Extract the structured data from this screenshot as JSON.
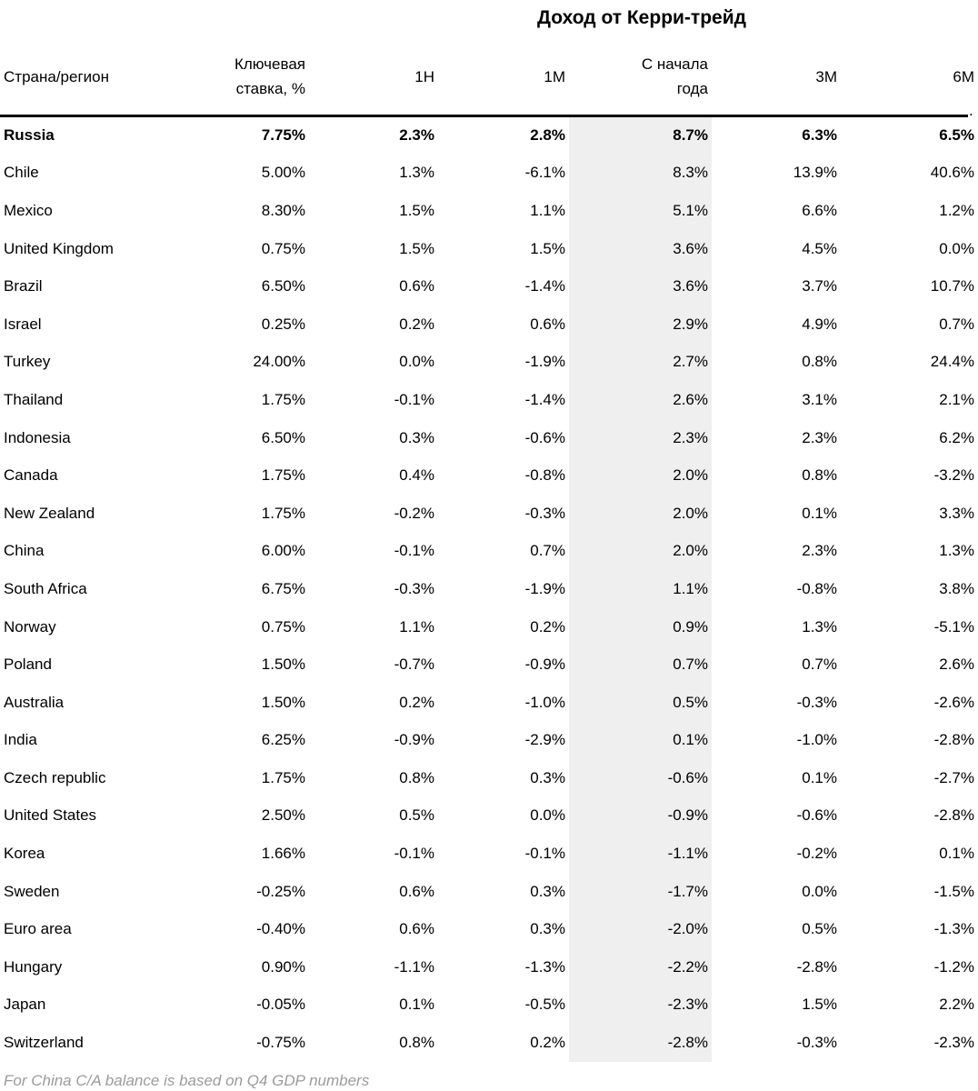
{
  "chart_data": {
    "type": "table",
    "title": "Доход от Керри-трейд",
    "columns": [
      "Страна/регион",
      "Ключевая ставка, %",
      "1Н",
      "1М",
      "С начала года",
      "3М",
      "6М"
    ],
    "highlighted_column": "С начала года",
    "bold_row_index": 0,
    "rows": [
      [
        "Russia",
        "7.75%",
        "2.3%",
        "2.8%",
        "8.7%",
        "6.3%",
        "6.5%"
      ],
      [
        "Chile",
        "5.00%",
        "1.3%",
        "-6.1%",
        "8.3%",
        "13.9%",
        "40.6%"
      ],
      [
        "Mexico",
        "8.30%",
        "1.5%",
        "1.1%",
        "5.1%",
        "6.6%",
        "1.2%"
      ],
      [
        "United Kingdom",
        "0.75%",
        "1.5%",
        "1.5%",
        "3.6%",
        "4.5%",
        "0.0%"
      ],
      [
        "Brazil",
        "6.50%",
        "0.6%",
        "-1.4%",
        "3.6%",
        "3.7%",
        "10.7%"
      ],
      [
        "Israel",
        "0.25%",
        "0.2%",
        "0.6%",
        "2.9%",
        "4.9%",
        "0.7%"
      ],
      [
        "Turkey",
        "24.00%",
        "0.0%",
        "-1.9%",
        "2.7%",
        "0.8%",
        "24.4%"
      ],
      [
        "Thailand",
        "1.75%",
        "-0.1%",
        "-1.4%",
        "2.6%",
        "3.1%",
        "2.1%"
      ],
      [
        "Indonesia",
        "6.50%",
        "0.3%",
        "-0.6%",
        "2.3%",
        "2.3%",
        "6.2%"
      ],
      [
        "Canada",
        "1.75%",
        "0.4%",
        "-0.8%",
        "2.0%",
        "0.8%",
        "-3.2%"
      ],
      [
        "New Zealand",
        "1.75%",
        "-0.2%",
        "-0.3%",
        "2.0%",
        "0.1%",
        "3.3%"
      ],
      [
        "China",
        "6.00%",
        "-0.1%",
        "0.7%",
        "2.0%",
        "2.3%",
        "1.3%"
      ],
      [
        "South Africa",
        "6.75%",
        "-0.3%",
        "-1.9%",
        "1.1%",
        "-0.8%",
        "3.8%"
      ],
      [
        "Norway",
        "0.75%",
        "1.1%",
        "0.2%",
        "0.9%",
        "1.3%",
        "-5.1%"
      ],
      [
        "Poland",
        "1.50%",
        "-0.7%",
        "-0.9%",
        "0.7%",
        "0.7%",
        "2.6%"
      ],
      [
        "Australia",
        "1.50%",
        "0.2%",
        "-1.0%",
        "0.5%",
        "-0.3%",
        "-2.6%"
      ],
      [
        "India",
        "6.25%",
        "-0.9%",
        "-2.9%",
        "0.1%",
        "-1.0%",
        "-2.8%"
      ],
      [
        "Czech republic",
        "1.75%",
        "0.8%",
        "0.3%",
        "-0.6%",
        "0.1%",
        "-2.7%"
      ],
      [
        "United States",
        "2.50%",
        "0.5%",
        "0.0%",
        "-0.9%",
        "-0.6%",
        "-2.8%"
      ],
      [
        "Korea",
        "1.66%",
        "-0.1%",
        "-0.1%",
        "-1.1%",
        "-0.2%",
        "0.1%"
      ],
      [
        "Sweden",
        "-0.25%",
        "0.6%",
        "0.3%",
        "-1.7%",
        "0.0%",
        "-1.5%"
      ],
      [
        "Euro area",
        "-0.40%",
        "0.6%",
        "0.3%",
        "-2.0%",
        "0.5%",
        "-1.3%"
      ],
      [
        "Hungary",
        "0.90%",
        "-1.1%",
        "-1.3%",
        "-2.2%",
        "-2.8%",
        "-1.2%"
      ],
      [
        "Japan",
        "-0.05%",
        "0.1%",
        "-0.5%",
        "-2.3%",
        "1.5%",
        "2.2%"
      ],
      [
        "Switzerland",
        "-0.75%",
        "0.8%",
        "0.2%",
        "-2.8%",
        "-0.3%",
        "-2.3%"
      ]
    ],
    "footnote": "For China C/A balance is based on Q4 GDP numbers"
  },
  "header_display": {
    "title": "Доход от Керри-трейд",
    "col_country": "Страна/регион",
    "col_key_rate": "Ключевая\nставка, %",
    "col_1w": "1Н",
    "col_1m": "1М",
    "col_ytd": "С начала\nгода",
    "col_3m": "3М",
    "col_6m": "6М"
  },
  "decoration": {
    "stray_period": "."
  },
  "colors": {
    "highlight_bg": "#efefef",
    "rule": "#000000",
    "footnote_text": "#9b9b9b",
    "text": "#000000",
    "background": "#ffffff"
  }
}
